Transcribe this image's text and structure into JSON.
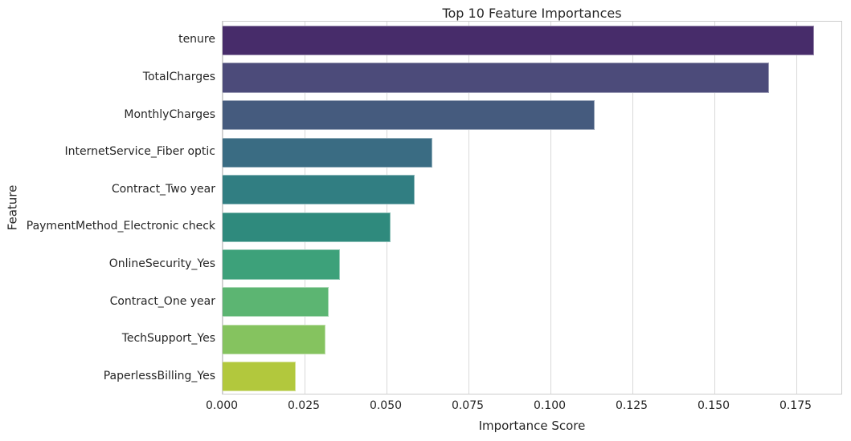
{
  "chart_data": {
    "type": "bar",
    "orientation": "horizontal",
    "title": "Top 10 Feature Importances",
    "xlabel": "Importance Score",
    "ylabel": "Feature",
    "categories": [
      "tenure",
      "TotalCharges",
      "MonthlyCharges",
      "InternetService_Fiber optic",
      "Contract_Two year",
      "PaymentMethod_Electronic check",
      "OnlineSecurity_Yes",
      "Contract_One year",
      "TechSupport_Yes",
      "PaperlessBilling_Yes"
    ],
    "values": [
      0.1803,
      0.1667,
      0.1135,
      0.064,
      0.0586,
      0.0512,
      0.0358,
      0.0324,
      0.0314,
      0.0223
    ],
    "bar_colors": [
      "#472c6a",
      "#4c4b7a",
      "#455b7e",
      "#3a6c83",
      "#317e82",
      "#2f8a7d",
      "#3da17a",
      "#5cb572",
      "#85c35f",
      "#b2c83d"
    ],
    "bar_edge_color": "rgba(255,255,255,0.45)",
    "xlim": [
      0,
      0.1892
    ],
    "xticks": [
      0,
      0.025,
      0.05,
      0.075,
      0.1,
      0.125,
      0.15,
      0.175
    ],
    "xtick_labels": [
      "0.000",
      "0.025",
      "0.050",
      "0.075",
      "0.100",
      "0.125",
      "0.150",
      "0.175"
    ],
    "grid": true,
    "grid_color": "#d9d9d9",
    "axes_edge_color": "#cccccc",
    "text_color": "#262626",
    "background": "#ffffff",
    "legend": null
  }
}
